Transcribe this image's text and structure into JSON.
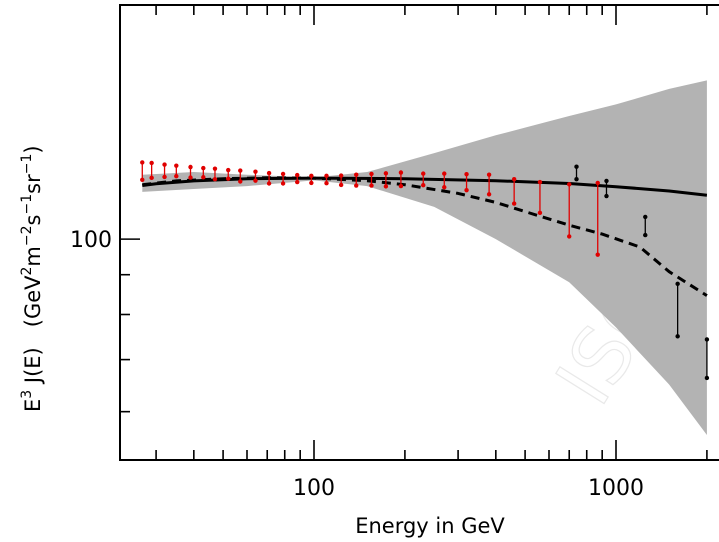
{
  "chart_data": {
    "type": "line",
    "title": "",
    "xlabel": "Energy in GeV",
    "ylabel": {
      "base": "E",
      "power": "3",
      "func": " J(E)   (GeV",
      "u1": "2",
      "mid1": "m",
      "u2": "−2",
      "mid2": "s",
      "u3": "−1",
      "mid3": "sr",
      "u4": "−1",
      "end": ")"
    },
    "x_scale": "log",
    "y_scale": "log",
    "xlim": [
      25,
      2050
    ],
    "ylim": [
      52,
      200
    ],
    "xticks_major": [
      100,
      1000
    ],
    "x_tick_labels": [
      "100",
      "1000"
    ],
    "yticks_major": [
      100
    ],
    "y_tick_labels": [
      "100"
    ],
    "grid": false,
    "colors": {
      "band": "#b3b3b3",
      "model": "#000000",
      "red_data": "#e00000",
      "black_data": "#000000"
    },
    "uncertainty_band": {
      "x": [
        27,
        40,
        60,
        100,
        150,
        250,
        400,
        700,
        1000,
        1500,
        2000
      ],
      "upper": [
        121,
        122,
        121,
        120,
        122,
        129,
        136,
        144,
        149,
        156,
        160
      ],
      "lower": [
        115,
        116,
        117,
        119,
        117,
        110,
        100,
        88,
        77,
        65,
        56
      ]
    },
    "series": [
      {
        "style": "solid",
        "x": [
          27,
          30,
          40,
          60,
          100,
          200,
          400,
          700,
          1000,
          1500,
          2000
        ],
        "y": [
          117.2,
          117.8,
          118.8,
          119.6,
          119.8,
          119.6,
          118.9,
          117.9,
          116.8,
          115.3,
          113.9
        ]
      },
      {
        "style": "dashed",
        "x": [
          27,
          35,
          50,
          70,
          100,
          150,
          200,
          300,
          400,
          500,
          700,
          900,
          1200,
          1500,
          2000
        ],
        "y": [
          117.5,
          118.8,
          119.6,
          119.9,
          119.8,
          118.9,
          117.5,
          114.5,
          111.5,
          108.5,
          104.2,
          101.5,
          97.7,
          90.8,
          84.6
        ]
      }
    ],
    "error_bars": [
      {
        "color": "red",
        "points": [
          {
            "x": 27,
            "hi": 125.5,
            "lo": 119.2
          },
          {
            "x": 29,
            "hi": 125.3,
            "lo": 119.9
          },
          {
            "x": 32,
            "hi": 124.7,
            "lo": 120.2
          },
          {
            "x": 35,
            "hi": 124.3,
            "lo": 120.5
          },
          {
            "x": 39,
            "hi": 123.8,
            "lo": 120.0
          },
          {
            "x": 43,
            "hi": 123.4,
            "lo": 120.1
          },
          {
            "x": 47,
            "hi": 123.2,
            "lo": 119.4
          },
          {
            "x": 52,
            "hi": 122.7,
            "lo": 119.6
          },
          {
            "x": 57,
            "hi": 122.5,
            "lo": 118.6
          },
          {
            "x": 64,
            "hi": 122.1,
            "lo": 118.9
          },
          {
            "x": 71,
            "hi": 121.6,
            "lo": 117.9
          },
          {
            "x": 79,
            "hi": 121.3,
            "lo": 117.9
          },
          {
            "x": 88,
            "hi": 120.9,
            "lo": 118.4
          },
          {
            "x": 98,
            "hi": 120.6,
            "lo": 118.1
          },
          {
            "x": 110,
            "hi": 120.6,
            "lo": 118.0
          },
          {
            "x": 123,
            "hi": 120.7,
            "lo": 117.4
          },
          {
            "x": 138,
            "hi": 121.0,
            "lo": 117.2
          },
          {
            "x": 155,
            "hi": 121.3,
            "lo": 117.2
          },
          {
            "x": 173,
            "hi": 121.5,
            "lo": 116.9
          },
          {
            "x": 194,
            "hi": 121.8,
            "lo": 117.0
          },
          {
            "x": 230,
            "hi": 121.4,
            "lo": 117.3
          },
          {
            "x": 270,
            "hi": 121.4,
            "lo": 116.6
          },
          {
            "x": 320,
            "hi": 121.2,
            "lo": 115.6
          },
          {
            "x": 380,
            "hi": 121.0,
            "lo": 114.2
          },
          {
            "x": 460,
            "hi": 119.4,
            "lo": 111.1
          },
          {
            "x": 560,
            "hi": 118.4,
            "lo": 108.1
          },
          {
            "x": 700,
            "hi": 117.6,
            "lo": 100.8
          },
          {
            "x": 870,
            "hi": 118.1,
            "lo": 95.5
          }
        ]
      },
      {
        "color": "black",
        "points": [
          {
            "x": 740,
            "hi": 123.9,
            "lo": 119.4
          },
          {
            "x": 930,
            "hi": 118.8,
            "lo": 113.6
          },
          {
            "x": 1250,
            "hi": 106.8,
            "lo": 101.2
          },
          {
            "x": 1600,
            "hi": 87.6,
            "lo": 75.0
          },
          {
            "x": 2000,
            "hi": 74.3,
            "lo": 66.3
          }
        ]
      }
    ],
    "watermark": "ISO"
  }
}
